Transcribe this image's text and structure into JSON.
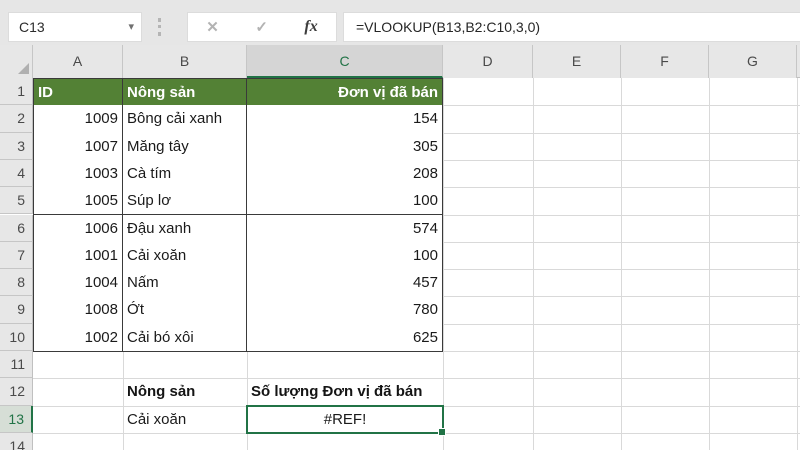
{
  "name_box": {
    "value": "C13"
  },
  "formula_bar": {
    "formula": "=VLOOKUP(B13,B2:C10,3,0)",
    "fx_label": "fx",
    "cancel_icon": "✕",
    "enter_icon": "✓",
    "dropdown_icon": "▾"
  },
  "grid": {
    "column_letters": [
      "A",
      "B",
      "C",
      "D",
      "E",
      "F",
      "G"
    ],
    "row_count": 14,
    "selected_cell": "C13",
    "selected_column": "C",
    "selected_row": 13
  },
  "table": {
    "header": {
      "id": "ID",
      "product": "Nông sản",
      "units": "Đơn vị đã bán"
    },
    "rows": [
      {
        "row": 2,
        "id": "1009",
        "product": "Bông cải xanh",
        "units": "154"
      },
      {
        "row": 3,
        "id": "1007",
        "product": "Măng tây",
        "units": "305"
      },
      {
        "row": 4,
        "id": "1003",
        "product": "Cà tím",
        "units": "208"
      },
      {
        "row": 5,
        "id": "1005",
        "product": "Súp lơ",
        "units": "100"
      },
      {
        "row": 6,
        "id": "1006",
        "product": "Đậu xanh",
        "units": "574"
      },
      {
        "row": 7,
        "id": "1001",
        "product": "Cải xoăn",
        "units": "100"
      },
      {
        "row": 8,
        "id": "1004",
        "product": "Nấm",
        "units": "457"
      },
      {
        "row": 9,
        "id": "1008",
        "product": "Ớt",
        "units": "780"
      },
      {
        "row": 10,
        "id": "1002",
        "product": "Cải bó xôi",
        "units": "625"
      }
    ]
  },
  "lookup": {
    "product_label": "Nông sản",
    "result_label": "Số lượng Đơn vị đã bán",
    "product_value": "Cải xoăn",
    "result_value": "#REF!",
    "label_row": 12,
    "value_row": 13
  },
  "colors": {
    "table_header_fill": "#538135",
    "selection_green": "#217346"
  }
}
